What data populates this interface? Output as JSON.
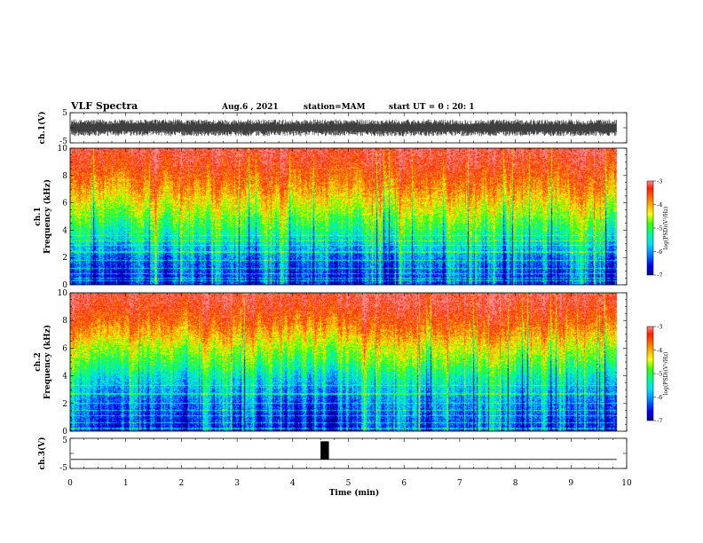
{
  "header": {
    "title": "VLF Spectra",
    "date": "Aug.6 , 2021",
    "station": "station=MAM",
    "start": "start UT = 0 : 20: 1"
  },
  "colors": {
    "waveform": "#000000",
    "colormap": [
      "#00008c",
      "#0000ff",
      "#0080ff",
      "#00e0ff",
      "#00ff80",
      "#40ff00",
      "#ffff00",
      "#ff9000",
      "#ff1e00",
      "#ff8c8c"
    ]
  },
  "chart_data": [
    {
      "type": "line",
      "name": "ch1-waveform",
      "ylabel": "ch.1(V)",
      "ylim": [
        -5,
        5
      ],
      "y_ticks": [
        "5",
        "-5"
      ],
      "xlim": [
        0,
        10
      ],
      "data_extent_min": 9.82,
      "value_envelope": [
        -2.8,
        2.8
      ]
    },
    {
      "type": "heatmap",
      "name": "ch1-spectrogram",
      "ylabel": "ch.1 Frequency (kHz)",
      "ylabel_lines": [
        "ch.1",
        "Frequency (kHz)"
      ],
      "ylim": [
        0,
        10
      ],
      "y_ticks": [
        "0",
        "2",
        "4",
        "6",
        "8",
        "10"
      ],
      "xlim": [
        0,
        10
      ],
      "data_extent_min": 9.82,
      "colorbar": {
        "label": "log(PSD)(V²/Hz)",
        "range": [
          -7,
          -3
        ],
        "ticks": [
          "-3",
          "-4",
          "-5",
          "-6",
          "-7"
        ]
      },
      "log_psd_profile": {
        "freq_khz": [
          0,
          1,
          2,
          3,
          4,
          5,
          6,
          7,
          8,
          9,
          10
        ],
        "log_psd": [
          -6.4,
          -6.3,
          -6.0,
          -5.6,
          -5.1,
          -4.7,
          -4.3,
          -3.9,
          -3.6,
          -3.3,
          -3.1
        ]
      },
      "spectral_lines_khz": [
        0.3,
        0.5,
        0.8,
        1.2,
        1.8,
        2.4,
        2.9,
        3.2,
        3.6
      ]
    },
    {
      "type": "heatmap",
      "name": "ch2-spectrogram",
      "ylabel": "ch.2 Frequency (kHz)",
      "ylabel_lines": [
        "ch.2",
        "Frequency (kHz)"
      ],
      "ylim": [
        0,
        10
      ],
      "y_ticks": [
        "0",
        "2",
        "4",
        "6",
        "8",
        "10"
      ],
      "xlim": [
        0,
        10
      ],
      "data_extent_min": 9.82,
      "colorbar": {
        "label": "log(PSD)(V²/Hz)",
        "range": [
          -7,
          -3
        ],
        "ticks": [
          "-3",
          "-4",
          "-5",
          "-6",
          "-7"
        ]
      },
      "log_psd_profile": {
        "freq_khz": [
          0,
          1,
          2,
          3,
          4,
          5,
          6,
          7,
          8,
          9,
          10
        ],
        "log_psd": [
          -6.5,
          -6.3,
          -6.1,
          -5.8,
          -5.4,
          -4.9,
          -4.5,
          -4.0,
          -3.6,
          -3.3,
          -3.1
        ]
      },
      "spectral_lines_khz": [
        0.2,
        0.6,
        1.1,
        1.5,
        2.0,
        2.7,
        3.3
      ]
    },
    {
      "type": "line",
      "name": "ch3-signal",
      "ylabel": "ch.3(V)",
      "ylim": [
        -5,
        5
      ],
      "y_ticks": [
        "5",
        "-5"
      ],
      "xlim": [
        0,
        10
      ],
      "xlabel": "Time (min)",
      "x_ticks": [
        "0",
        "1",
        "2",
        "3",
        "4",
        "5",
        "6",
        "7",
        "8",
        "9",
        "10"
      ],
      "data_extent_min": 9.82,
      "baseline_v": -2.0,
      "pulse": {
        "start_min": 4.5,
        "end_min": 4.65,
        "level_v": 4.0
      }
    }
  ]
}
